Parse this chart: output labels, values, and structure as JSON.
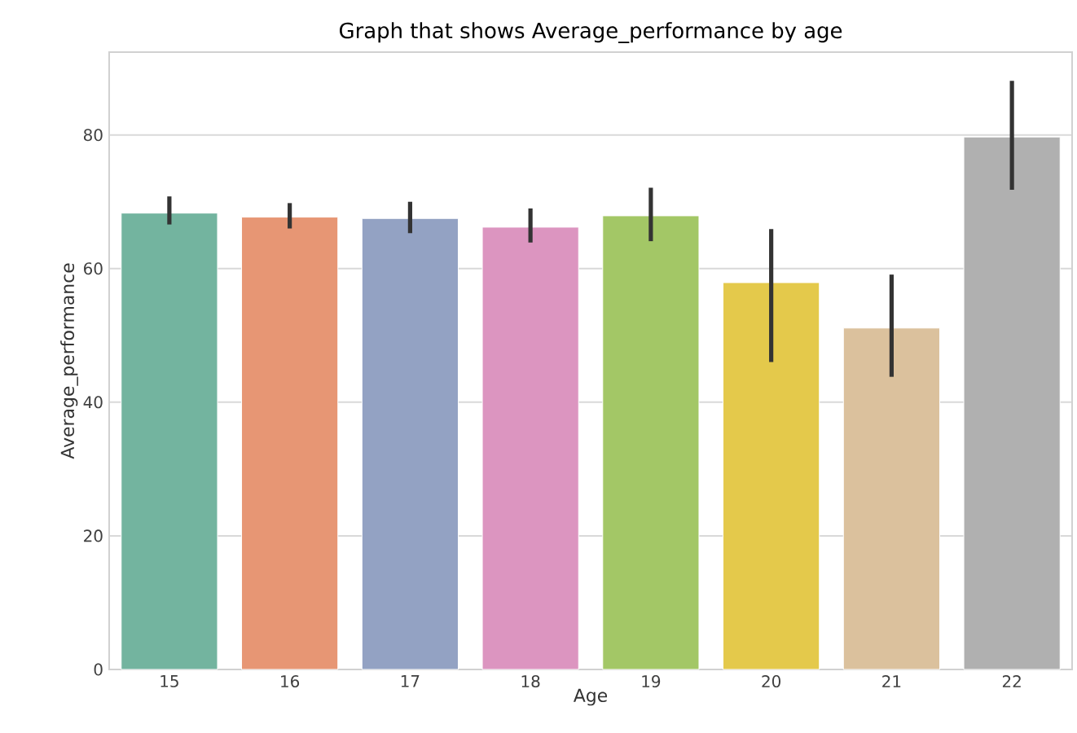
{
  "chart_data": {
    "type": "bar",
    "title": "Graph that shows Average_performance by age",
    "xlabel": "Age",
    "ylabel": "Average_performance",
    "categories": [
      "15",
      "16",
      "17",
      "18",
      "19",
      "20",
      "21",
      "22"
    ],
    "values": [
      68.3,
      67.7,
      67.5,
      66.2,
      67.9,
      57.9,
      51.1,
      79.7
    ],
    "errors": [
      [
        66.6,
        70.8
      ],
      [
        66.0,
        69.8
      ],
      [
        65.3,
        70.0
      ],
      [
        63.9,
        69.0
      ],
      [
        64.1,
        72.1
      ],
      [
        46.0,
        65.9
      ],
      [
        43.8,
        59.1
      ],
      [
        71.8,
        88.1
      ]
    ],
    "colors": [
      "#73b49f",
      "#e79674",
      "#93a2c3",
      "#dc95c0",
      "#a3c766",
      "#e4c94b",
      "#dbc19d",
      "#b0b0b0"
    ],
    "ylim": [
      0,
      92.4
    ],
    "yticks": [
      0,
      20,
      40,
      60,
      80
    ],
    "grid": "y"
  }
}
